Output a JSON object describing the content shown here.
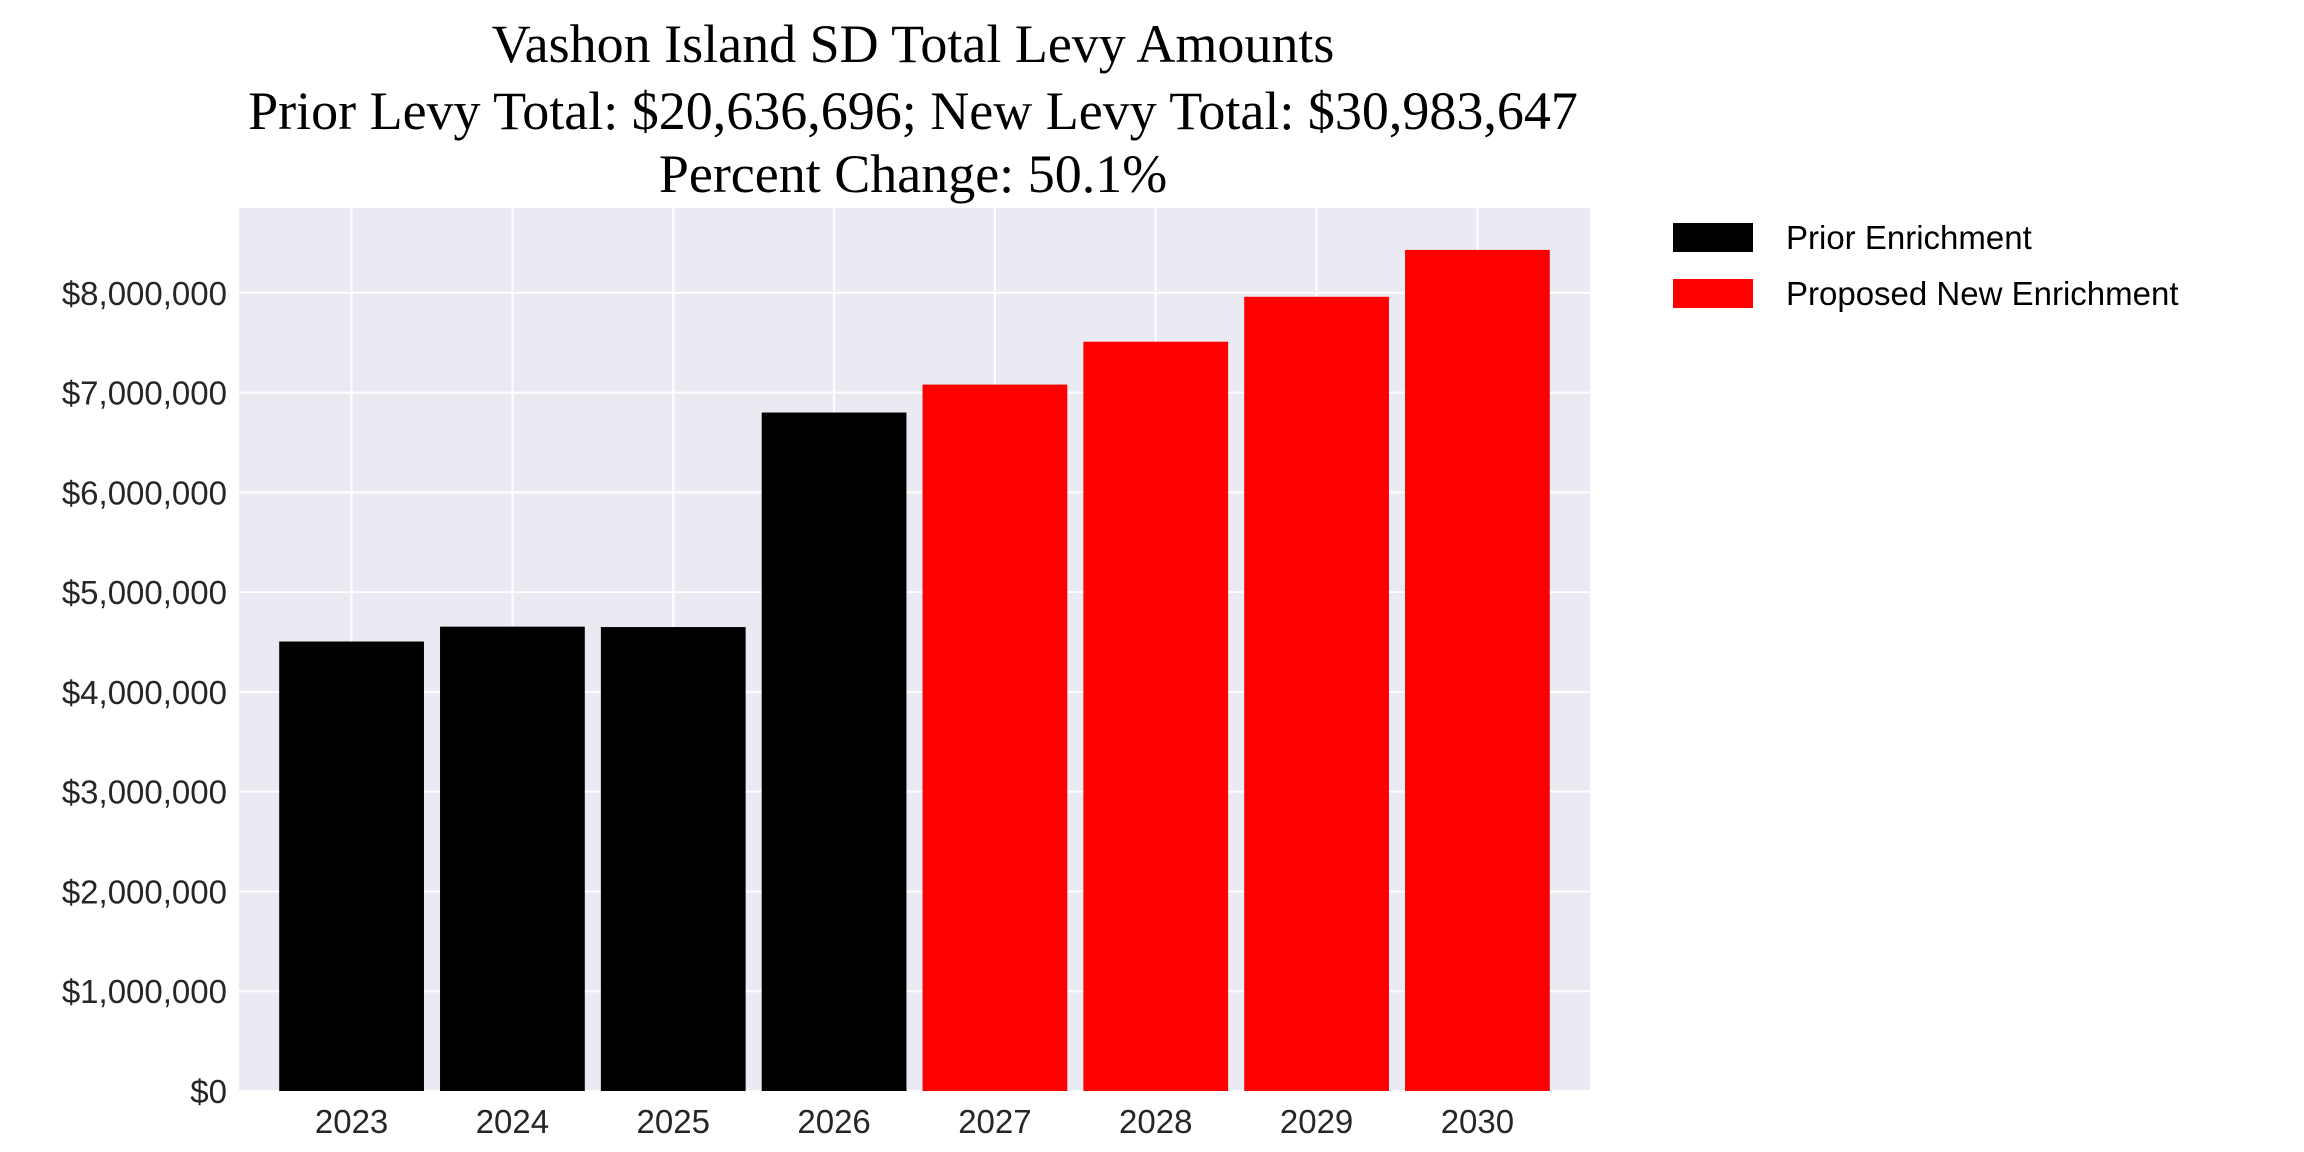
{
  "chart_data": {
    "type": "bar",
    "title": "Vashon Island SD Total Levy Amounts",
    "subtitle_lines": [
      "Prior Levy Total:  $20,636,696; New Levy Total: $30,983,647",
      "Percent Change: 50.1%"
    ],
    "xlabel": "",
    "ylabel": "",
    "categories": [
      "2023",
      "2024",
      "2025",
      "2026",
      "2027",
      "2028",
      "2029",
      "2030"
    ],
    "values": [
      4505000,
      4654000,
      4650000,
      6800000,
      7080000,
      7510000,
      7960000,
      8430000
    ],
    "series_of_bar": [
      "Prior Enrichment",
      "Prior Enrichment",
      "Prior Enrichment",
      "Prior Enrichment",
      "Proposed New Enrichment",
      "Proposed New Enrichment",
      "Proposed New Enrichment",
      "Proposed New Enrichment"
    ],
    "legend": [
      {
        "name": "Prior Enrichment",
        "color": "#000000"
      },
      {
        "name": "Proposed New Enrichment",
        "color": "#ff0000"
      }
    ],
    "legend_placement": "outside-top-right",
    "ylim": [
      0,
      8850000
    ],
    "yticks": [
      0,
      1000000,
      2000000,
      3000000,
      4000000,
      5000000,
      6000000,
      7000000,
      8000000
    ],
    "ytick_labels": [
      "$0",
      "$1,000,000",
      "$2,000,000",
      "$3,000,000",
      "$4,000,000",
      "$5,000,000",
      "$6,000,000",
      "$7,000,000",
      "$8,000,000"
    ],
    "grid": true,
    "background": "#eaeaf2"
  }
}
